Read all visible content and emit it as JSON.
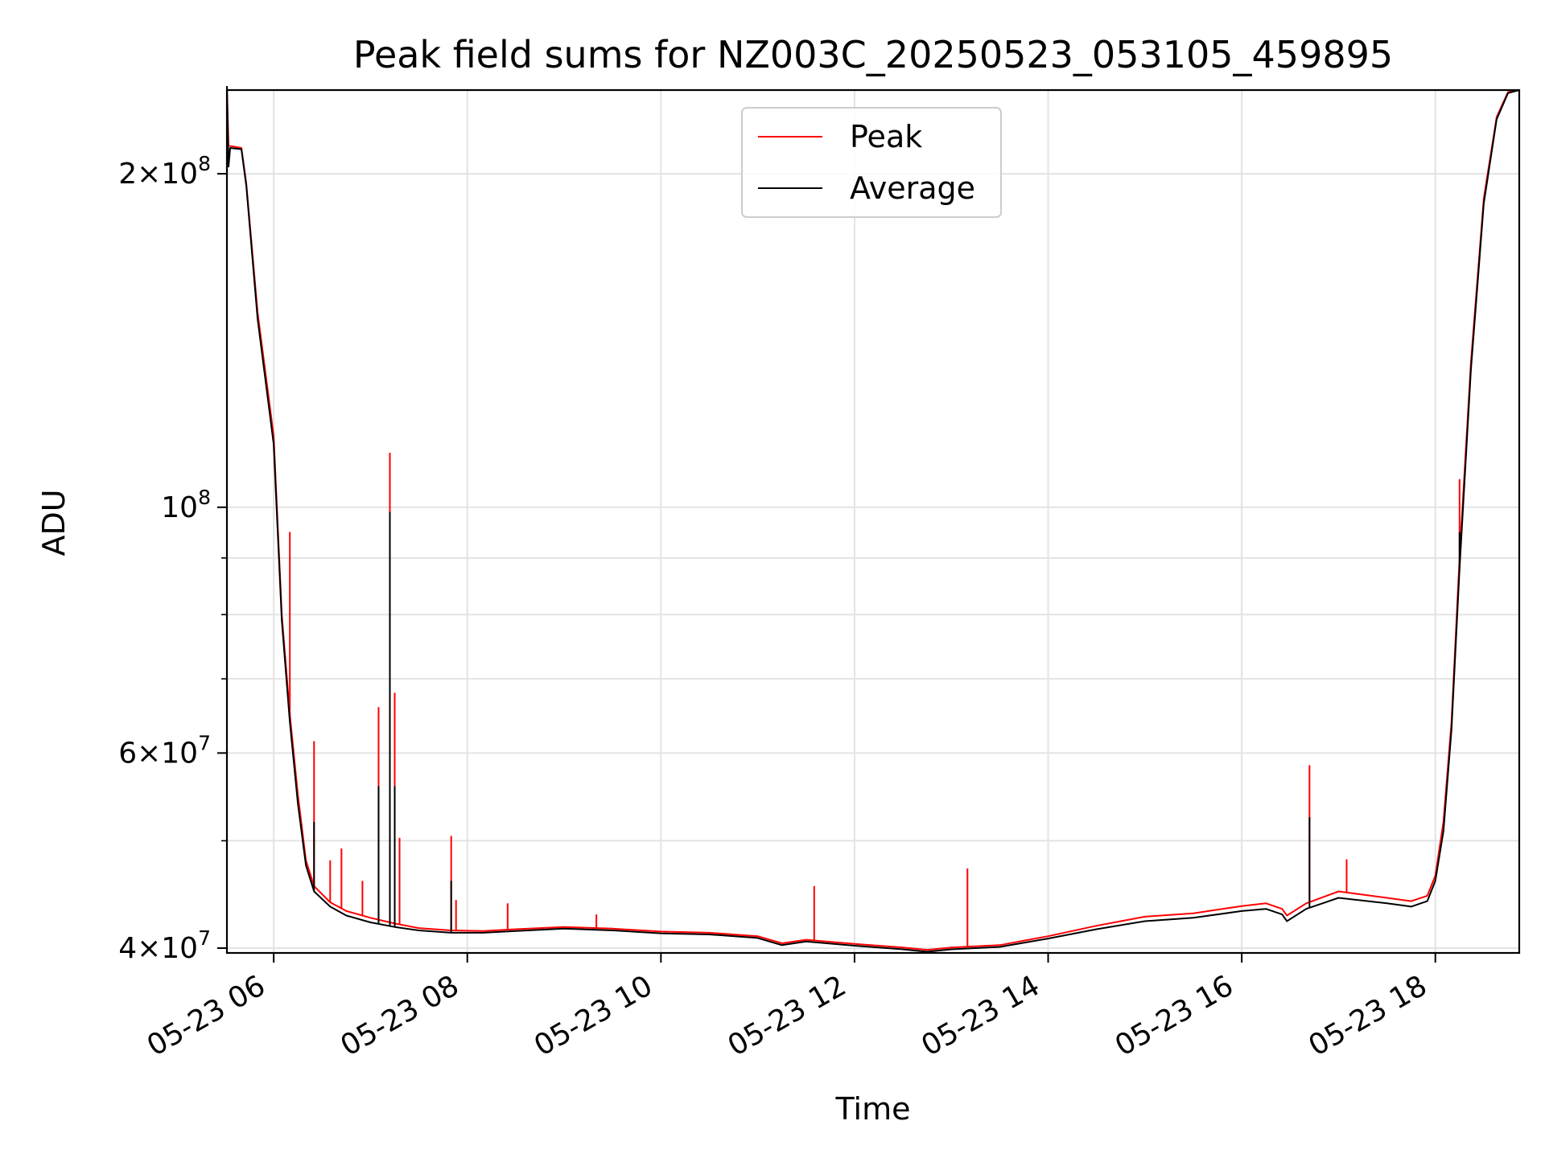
{
  "chart_data": {
    "type": "line",
    "title": "Peak field sums for NZ003C_20250523_053105_459895",
    "xlabel": "Time",
    "ylabel": "ADU",
    "y_scale": "log",
    "ylim": [
      39600000,
      238000000
    ],
    "xlim": [
      "2025-05-23 05:31",
      "2025-05-23 18:52"
    ],
    "x_ticks": [
      {
        "t": "2025-05-23 06:00",
        "label": "05-23 06"
      },
      {
        "t": "2025-05-23 08:00",
        "label": "05-23 08"
      },
      {
        "t": "2025-05-23 10:00",
        "label": "05-23 10"
      },
      {
        "t": "2025-05-23 12:00",
        "label": "05-23 12"
      },
      {
        "t": "2025-05-23 14:00",
        "label": "05-23 14"
      },
      {
        "t": "2025-05-23 16:00",
        "label": "05-23 16"
      },
      {
        "t": "2025-05-23 18:00",
        "label": "05-23 18"
      }
    ],
    "y_ticks": [
      {
        "value": 40000000,
        "mantissa": "4",
        "exp": "7"
      },
      {
        "value": 60000000,
        "mantissa": "6",
        "exp": "7"
      },
      {
        "value": 100000000,
        "mantissa": "",
        "exp": "8"
      },
      {
        "value": 200000000,
        "mantissa": "2",
        "exp": "8"
      }
    ],
    "y_minor_ticks": [
      50000000,
      70000000,
      80000000,
      90000000
    ],
    "grid": true,
    "legend_position": "upper center",
    "series": [
      {
        "name": "Peak",
        "color": "#ff0000",
        "points": [
          [
            "2025-05-23 05:31",
            240000000
          ],
          [
            "2025-05-23 05:32",
            212000000
          ],
          [
            "2025-05-23 05:40",
            211000000
          ],
          [
            "2025-05-23 05:43",
            196000000
          ],
          [
            "2025-05-23 05:50",
            150000000
          ],
          [
            "2025-05-23 06:00",
            116000000
          ],
          [
            "2025-05-23 06:05",
            80000000
          ],
          [
            "2025-05-23 06:10",
            65000000
          ],
          [
            "2025-05-23 06:15",
            55000000
          ],
          [
            "2025-05-23 06:20",
            48000000
          ],
          [
            "2025-05-23 06:25",
            45500000
          ],
          [
            "2025-05-23 06:35",
            44000000
          ],
          [
            "2025-05-23 06:45",
            43200000
          ],
          [
            "2025-05-23 07:00",
            42600000
          ],
          [
            "2025-05-23 07:15",
            42100000
          ],
          [
            "2025-05-23 07:30",
            41700000
          ],
          [
            "2025-05-23 07:50",
            41500000
          ],
          [
            "2025-05-23 08:10",
            41450000
          ],
          [
            "2025-05-23 08:30",
            41600000
          ],
          [
            "2025-05-23 09:00",
            41800000
          ],
          [
            "2025-05-23 09:30",
            41650000
          ],
          [
            "2025-05-23 10:00",
            41400000
          ],
          [
            "2025-05-23 10:30",
            41300000
          ],
          [
            "2025-05-23 11:00",
            41000000
          ],
          [
            "2025-05-23 11:15",
            40400000
          ],
          [
            "2025-05-23 11:30",
            40700000
          ],
          [
            "2025-05-23 12:00",
            40350000
          ],
          [
            "2025-05-23 12:30",
            40050000
          ],
          [
            "2025-05-23 12:45",
            39850000
          ],
          [
            "2025-05-23 13:00",
            40050000
          ],
          [
            "2025-05-23 13:30",
            40250000
          ],
          [
            "2025-05-23 14:00",
            41000000
          ],
          [
            "2025-05-23 14:30",
            41900000
          ],
          [
            "2025-05-23 15:00",
            42700000
          ],
          [
            "2025-05-23 15:30",
            43000000
          ],
          [
            "2025-05-23 16:00",
            43650000
          ],
          [
            "2025-05-23 16:15",
            43900000
          ],
          [
            "2025-05-23 16:25",
            43400000
          ],
          [
            "2025-05-23 16:28",
            42800000
          ],
          [
            "2025-05-23 16:40",
            43900000
          ],
          [
            "2025-05-23 17:00",
            45000000
          ],
          [
            "2025-05-23 17:30",
            44400000
          ],
          [
            "2025-05-23 17:45",
            44100000
          ],
          [
            "2025-05-23 17:55",
            44600000
          ],
          [
            "2025-05-23 18:00",
            46500000
          ],
          [
            "2025-05-23 18:05",
            52000000
          ],
          [
            "2025-05-23 18:10",
            64000000
          ],
          [
            "2025-05-23 18:15",
            90000000
          ],
          [
            "2025-05-23 18:22",
            135000000
          ],
          [
            "2025-05-23 18:30",
            190000000
          ],
          [
            "2025-05-23 18:38",
            225000000
          ],
          [
            "2025-05-23 18:45",
            237000000
          ],
          [
            "2025-05-23 18:52",
            238000000
          ]
        ],
        "spikes": [
          [
            "2025-05-23 06:10",
            95000000
          ],
          [
            "2025-05-23 06:25",
            61500000
          ],
          [
            "2025-05-23 06:35",
            48000000
          ],
          [
            "2025-05-23 06:42",
            49200000
          ],
          [
            "2025-05-23 06:55",
            46000000
          ],
          [
            "2025-05-23 07:05",
            66000000
          ],
          [
            "2025-05-23 07:12",
            112000000
          ],
          [
            "2025-05-23 07:15",
            68000000
          ],
          [
            "2025-05-23 07:18",
            50300000
          ],
          [
            "2025-05-23 07:50",
            50500000
          ],
          [
            "2025-05-23 07:53",
            44200000
          ],
          [
            "2025-05-23 08:25",
            43900000
          ],
          [
            "2025-05-23 09:20",
            42900000
          ],
          [
            "2025-05-23 11:35",
            45500000
          ],
          [
            "2025-05-23 13:10",
            47200000
          ],
          [
            "2025-05-23 16:42",
            58500000
          ],
          [
            "2025-05-23 17:05",
            48100000
          ],
          [
            "2025-05-23 18:15",
            106000000
          ]
        ]
      },
      {
        "name": "Average",
        "color": "#000000",
        "points": [
          [
            "2025-05-23 05:31",
            240000000
          ],
          [
            "2025-05-23 05:32",
            203000000
          ],
          [
            "2025-05-23 05:33",
            211000000
          ],
          [
            "2025-05-23 05:40",
            210500000
          ],
          [
            "2025-05-23 05:43",
            195000000
          ],
          [
            "2025-05-23 05:50",
            148000000
          ],
          [
            "2025-05-23 06:00",
            114000000
          ],
          [
            "2025-05-23 06:05",
            79000000
          ],
          [
            "2025-05-23 06:10",
            64000000
          ],
          [
            "2025-05-23 06:15",
            54000000
          ],
          [
            "2025-05-23 06:20",
            47500000
          ],
          [
            "2025-05-23 06:25",
            45000000
          ],
          [
            "2025-05-23 06:35",
            43600000
          ],
          [
            "2025-05-23 06:45",
            42800000
          ],
          [
            "2025-05-23 07:00",
            42200000
          ],
          [
            "2025-05-23 07:15",
            41800000
          ],
          [
            "2025-05-23 07:30",
            41500000
          ],
          [
            "2025-05-23 07:50",
            41300000
          ],
          [
            "2025-05-23 08:10",
            41300000
          ],
          [
            "2025-05-23 08:30",
            41450000
          ],
          [
            "2025-05-23 09:00",
            41650000
          ],
          [
            "2025-05-23 09:30",
            41500000
          ],
          [
            "2025-05-23 10:00",
            41250000
          ],
          [
            "2025-05-23 10:30",
            41150000
          ],
          [
            "2025-05-23 11:00",
            40850000
          ],
          [
            "2025-05-23 11:15",
            40250000
          ],
          [
            "2025-05-23 11:30",
            40550000
          ],
          [
            "2025-05-23 12:00",
            40200000
          ],
          [
            "2025-05-23 12:30",
            39900000
          ],
          [
            "2025-05-23 12:45",
            39700000
          ],
          [
            "2025-05-23 13:00",
            39900000
          ],
          [
            "2025-05-23 13:30",
            40100000
          ],
          [
            "2025-05-23 14:00",
            40800000
          ],
          [
            "2025-05-23 14:30",
            41600000
          ],
          [
            "2025-05-23 15:00",
            42300000
          ],
          [
            "2025-05-23 15:30",
            42600000
          ],
          [
            "2025-05-23 16:00",
            43200000
          ],
          [
            "2025-05-23 16:15",
            43400000
          ],
          [
            "2025-05-23 16:25",
            42900000
          ],
          [
            "2025-05-23 16:28",
            42300000
          ],
          [
            "2025-05-23 16:40",
            43400000
          ],
          [
            "2025-05-23 17:00",
            44400000
          ],
          [
            "2025-05-23 17:30",
            43900000
          ],
          [
            "2025-05-23 17:45",
            43600000
          ],
          [
            "2025-05-23 17:55",
            44100000
          ],
          [
            "2025-05-23 18:00",
            46000000
          ],
          [
            "2025-05-23 18:05",
            51000000
          ],
          [
            "2025-05-23 18:10",
            63000000
          ],
          [
            "2025-05-23 18:15",
            88000000
          ],
          [
            "2025-05-23 18:22",
            133000000
          ],
          [
            "2025-05-23 18:30",
            188000000
          ],
          [
            "2025-05-23 18:38",
            224000000
          ],
          [
            "2025-05-23 18:45",
            236500000
          ],
          [
            "2025-05-23 18:52",
            238000000
          ]
        ],
        "spikes": [
          [
            "2025-05-23 06:25",
            52000000
          ],
          [
            "2025-05-23 07:05",
            56000000
          ],
          [
            "2025-05-23 07:12",
            99000000
          ],
          [
            "2025-05-23 07:15",
            56000000
          ],
          [
            "2025-05-23 07:50",
            46000000
          ],
          [
            "2025-05-23 16:42",
            52500000
          ],
          [
            "2025-05-23 18:15",
            95000000
          ]
        ]
      }
    ]
  }
}
